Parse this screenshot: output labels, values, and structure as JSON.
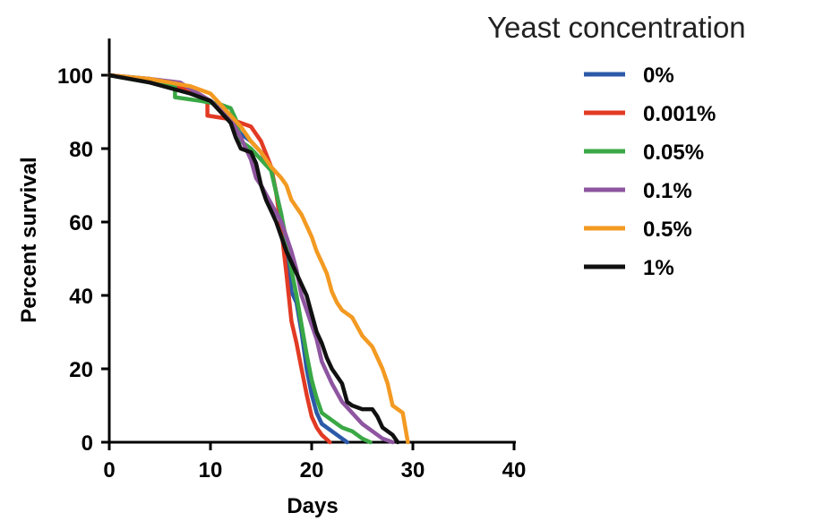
{
  "chart_data": {
    "type": "line",
    "xlabel": "Days",
    "ylabel": "Percent survival",
    "xlim": [
      0,
      40
    ],
    "ylim": [
      0,
      100
    ],
    "x_ticks": [
      0,
      10,
      20,
      30,
      40
    ],
    "y_ticks": [
      0,
      20,
      40,
      60,
      80,
      100
    ],
    "x_tick_labels": [
      "0",
      "10",
      "20",
      "30",
      "40"
    ],
    "y_tick_labels": [
      "0",
      "20",
      "40",
      "60",
      "80",
      "100"
    ],
    "grid": false,
    "legend_title": "Yeast concentration",
    "legend_position": "top-right",
    "series": [
      {
        "name": "0%",
        "color": "#2c5aa8",
        "x": [
          0,
          4,
          8,
          10,
          11,
          12,
          13,
          14,
          15,
          16,
          17,
          17.5,
          18,
          18.5,
          19,
          19.5,
          20,
          20.5,
          21,
          22,
          23,
          23.5
        ],
        "y": [
          100,
          99,
          96,
          93,
          91,
          88,
          84,
          82,
          79,
          74,
          62,
          52,
          41,
          38,
          30,
          20,
          13,
          8,
          5,
          3,
          1,
          0
        ]
      },
      {
        "name": "0.001%",
        "color": "#e23a24",
        "x": [
          0,
          5,
          8,
          9.7,
          9.7,
          12,
          14,
          15,
          16,
          16.5,
          17,
          17.5,
          18,
          18.5,
          19,
          19.5,
          20,
          20.5,
          21,
          21.8
        ],
        "y": [
          100,
          98,
          96,
          93,
          89,
          88,
          86,
          82,
          75,
          68,
          58,
          46,
          33,
          27,
          20,
          13,
          7,
          4,
          2,
          0
        ]
      },
      {
        "name": "0.05%",
        "color": "#3aa845",
        "x": [
          0,
          4,
          6.5,
          6.5,
          9,
          11,
          12,
          12.5,
          13,
          14,
          15,
          16,
          16.5,
          17,
          17.5,
          18,
          18.5,
          19,
          19.5,
          20,
          20.5,
          21,
          22,
          23,
          24,
          25,
          25.8
        ],
        "y": [
          100,
          98,
          97,
          94,
          93,
          92,
          91,
          88,
          82,
          80,
          77,
          74,
          68,
          62,
          55,
          47,
          40,
          32,
          24,
          17,
          12,
          8,
          6,
          4,
          3,
          1,
          0
        ]
      },
      {
        "name": "0.1%",
        "color": "#8e55a0",
        "x": [
          0,
          4,
          7,
          10,
          12,
          13,
          13.5,
          14,
          14.5,
          15,
          16,
          17,
          17.5,
          18,
          18.5,
          19,
          19.5,
          20,
          20.5,
          21,
          21.5,
          22,
          23,
          24,
          25,
          26,
          27,
          28
        ],
        "y": [
          100,
          99,
          98,
          93,
          88,
          83,
          80,
          77,
          72,
          70,
          65,
          60,
          56,
          52,
          47,
          40,
          36,
          32,
          28,
          22,
          19,
          16,
          11,
          8,
          5,
          3,
          1,
          0
        ]
      },
      {
        "name": "0.5%",
        "color": "#f39a22",
        "x": [
          0,
          4,
          8,
          10,
          11,
          12,
          13,
          14,
          15,
          16,
          17,
          17.5,
          18,
          19,
          20,
          20.5,
          21,
          21.5,
          22,
          22.5,
          23,
          24,
          25,
          26,
          27,
          27.5,
          28,
          29,
          29.5
        ],
        "y": [
          100,
          99,
          97,
          95,
          92,
          89,
          86,
          82,
          79,
          75,
          72,
          70,
          66,
          62,
          56,
          52,
          49,
          46,
          41,
          38,
          36,
          34,
          29,
          26,
          20,
          16,
          10,
          8,
          0
        ]
      },
      {
        "name": "1%",
        "color": "#111111",
        "x": [
          0,
          4,
          8,
          10,
          11,
          12,
          12.5,
          13,
          14,
          14.5,
          15,
          15.5,
          16,
          16.5,
          17,
          17.5,
          18,
          18.5,
          19,
          19.5,
          20,
          20.5,
          21,
          21.5,
          22,
          23,
          23.5,
          24,
          25,
          26,
          26.5,
          27,
          28,
          28.5
        ],
        "y": [
          100,
          98,
          95,
          93,
          90,
          87,
          83,
          80,
          79,
          76,
          70,
          66,
          63,
          60,
          56,
          52,
          49,
          46,
          43,
          40,
          35,
          30,
          27,
          23,
          20,
          16,
          11,
          10,
          9,
          9,
          7,
          4,
          2,
          0
        ]
      }
    ]
  }
}
